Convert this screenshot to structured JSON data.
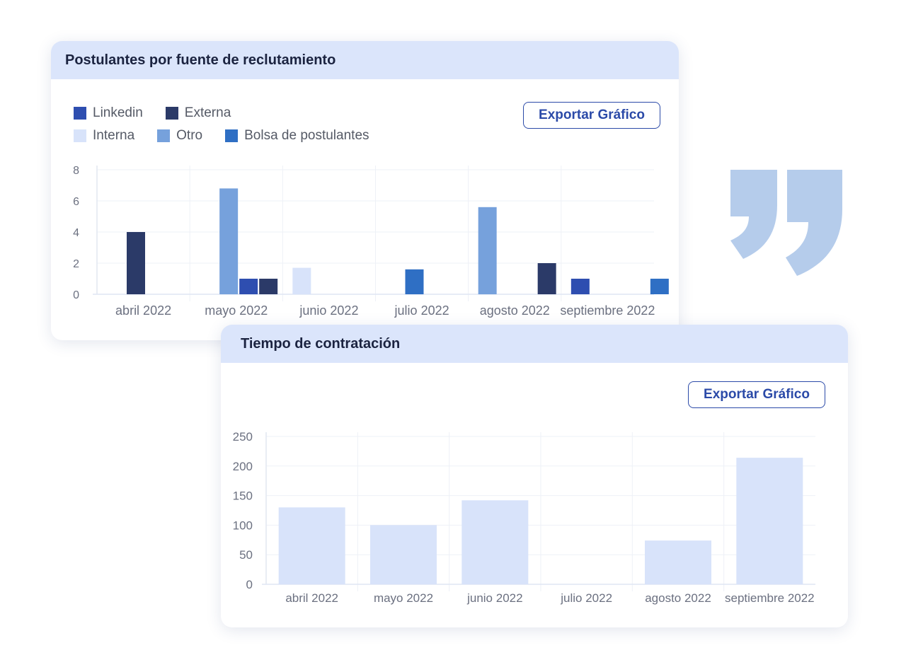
{
  "charts": [
    {
      "title": "Postulantes por fuente de reclutamiento",
      "export_label": "Exportar Gráfico",
      "legend": [
        {
          "label": "Linkedin",
          "color": "#2e4eb0"
        },
        {
          "label": "Externa",
          "color": "#2b3a68"
        },
        {
          "label": "Interna",
          "color": "#d8e3fa"
        },
        {
          "label": "Otro",
          "color": "#76a1dc"
        },
        {
          "label": "Bolsa de postulantes",
          "color": "#2f6fc4"
        }
      ]
    },
    {
      "title": "Tiempo de contratación",
      "export_label": "Exportar Gráfico"
    }
  ],
  "decoration": {
    "quote_icon": "closing-quote-icon",
    "quote_color": "#b5cceb"
  },
  "chart_data": [
    {
      "type": "bar",
      "title": "Postulantes por fuente de reclutamiento",
      "categories": [
        "abril 2022",
        "mayo 2022",
        "junio 2022",
        "julio 2022",
        "agosto 2022",
        "septiembre 2022"
      ],
      "ylim": [
        0,
        8
      ],
      "yticks": [
        0,
        2,
        4,
        6,
        8
      ],
      "grid": true,
      "legend_position": "top-left",
      "series": [
        {
          "name": "Linkedin",
          "color": "#2e4eb0",
          "values": [
            0,
            1,
            0,
            0,
            0,
            1
          ]
        },
        {
          "name": "Externa",
          "color": "#2b3a68",
          "values": [
            4,
            1,
            0,
            0,
            2,
            0
          ]
        },
        {
          "name": "Interna",
          "color": "#d8e3fa",
          "values": [
            0,
            0,
            1.7,
            0,
            0,
            0
          ]
        },
        {
          "name": "Otro",
          "color": "#76a1dc",
          "values": [
            0,
            6.8,
            0,
            0,
            5.6,
            0
          ]
        },
        {
          "name": "Bolsa de postulantes",
          "color": "#2f6fc4",
          "values": [
            0,
            0,
            0,
            1.6,
            0,
            1
          ]
        }
      ]
    },
    {
      "type": "bar",
      "title": "Tiempo de contratación",
      "categories": [
        "abril 2022",
        "mayo 2022",
        "junio 2022",
        "julio 2022",
        "agosto 2022",
        "septiembre 2022"
      ],
      "values": [
        130,
        100,
        142,
        0,
        74,
        214
      ],
      "color": "#d8e3fa",
      "ylim": [
        0,
        250
      ],
      "yticks": [
        0,
        50,
        100,
        150,
        200,
        250
      ],
      "grid": true
    }
  ]
}
